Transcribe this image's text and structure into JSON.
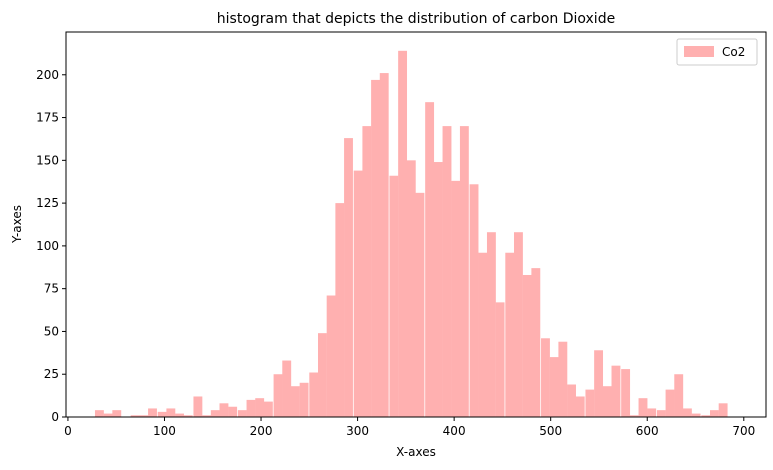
{
  "chart_data": {
    "type": "bar",
    "title": "histogram that depicts the distribution of carbon Dioxide",
    "xlabel": "X-axes",
    "ylabel": "Y-axes",
    "xlim": [
      -2,
      723
    ],
    "ylim": [
      0,
      225
    ],
    "xticks": [
      0,
      100,
      200,
      300,
      400,
      500,
      600,
      700
    ],
    "yticks": [
      0,
      25,
      50,
      75,
      100,
      125,
      150,
      175,
      200
    ],
    "grid": false,
    "legend": {
      "position": "top-right"
    },
    "colors": {
      "bars": "#ffb0b0",
      "axes": "#000000"
    },
    "bin_width": 9.2,
    "series": [
      {
        "name": "Co2",
        "bins": [
          {
            "x": 28,
            "value": 4
          },
          {
            "x": 37,
            "value": 2
          },
          {
            "x": 46,
            "value": 4
          },
          {
            "x": 56,
            "value": 0
          },
          {
            "x": 65,
            "value": 1
          },
          {
            "x": 74,
            "value": 1
          },
          {
            "x": 83,
            "value": 5
          },
          {
            "x": 93,
            "value": 3
          },
          {
            "x": 102,
            "value": 5
          },
          {
            "x": 111,
            "value": 2
          },
          {
            "x": 120,
            "value": 1
          },
          {
            "x": 130,
            "value": 12
          },
          {
            "x": 139,
            "value": 1
          },
          {
            "x": 148,
            "value": 4
          },
          {
            "x": 157,
            "value": 8
          },
          {
            "x": 166,
            "value": 6
          },
          {
            "x": 176,
            "value": 4
          },
          {
            "x": 185,
            "value": 10
          },
          {
            "x": 194,
            "value": 11
          },
          {
            "x": 203,
            "value": 9
          },
          {
            "x": 213,
            "value": 25
          },
          {
            "x": 222,
            "value": 33
          },
          {
            "x": 231,
            "value": 18
          },
          {
            "x": 240,
            "value": 20
          },
          {
            "x": 250,
            "value": 26
          },
          {
            "x": 259,
            "value": 49
          },
          {
            "x": 268,
            "value": 71
          },
          {
            "x": 277,
            "value": 125
          },
          {
            "x": 286,
            "value": 163
          },
          {
            "x": 296,
            "value": 144
          },
          {
            "x": 305,
            "value": 170
          },
          {
            "x": 314,
            "value": 197
          },
          {
            "x": 323,
            "value": 201
          },
          {
            "x": 333,
            "value": 141
          },
          {
            "x": 342,
            "value": 214
          },
          {
            "x": 351,
            "value": 150
          },
          {
            "x": 360,
            "value": 131
          },
          {
            "x": 370,
            "value": 184
          },
          {
            "x": 379,
            "value": 149
          },
          {
            "x": 388,
            "value": 170
          },
          {
            "x": 397,
            "value": 138
          },
          {
            "x": 406,
            "value": 170
          },
          {
            "x": 416,
            "value": 136
          },
          {
            "x": 425,
            "value": 96
          },
          {
            "x": 434,
            "value": 108
          },
          {
            "x": 443,
            "value": 67
          },
          {
            "x": 453,
            "value": 96
          },
          {
            "x": 462,
            "value": 108
          },
          {
            "x": 471,
            "value": 83
          },
          {
            "x": 480,
            "value": 87
          },
          {
            "x": 490,
            "value": 46
          },
          {
            "x": 499,
            "value": 35
          },
          {
            "x": 508,
            "value": 44
          },
          {
            "x": 517,
            "value": 19
          },
          {
            "x": 526,
            "value": 12
          },
          {
            "x": 536,
            "value": 16
          },
          {
            "x": 545,
            "value": 39
          },
          {
            "x": 554,
            "value": 18
          },
          {
            "x": 563,
            "value": 30
          },
          {
            "x": 573,
            "value": 28
          },
          {
            "x": 582,
            "value": 1
          },
          {
            "x": 591,
            "value": 11
          },
          {
            "x": 600,
            "value": 5
          },
          {
            "x": 610,
            "value": 4
          },
          {
            "x": 619,
            "value": 16
          },
          {
            "x": 628,
            "value": 25
          },
          {
            "x": 637,
            "value": 5
          },
          {
            "x": 646,
            "value": 2
          },
          {
            "x": 656,
            "value": 1
          },
          {
            "x": 665,
            "value": 4
          },
          {
            "x": 674,
            "value": 8
          }
        ]
      }
    ]
  }
}
